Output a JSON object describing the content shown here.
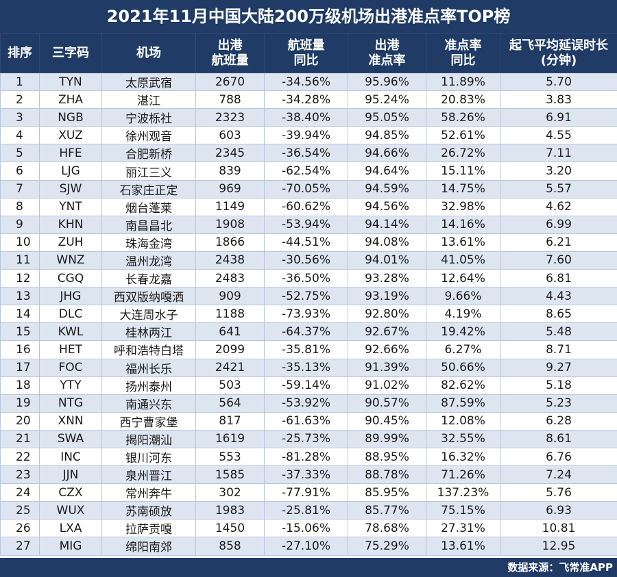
{
  "title": "2021年11月中国大陆200万级机场出港准点率TOP榜",
  "source": "数据来源：飞常准APP",
  "colors": {
    "header_bg": "#1f3b66",
    "row_alt": "#dde5f1",
    "row": "#ffffff"
  },
  "chart_data": {
    "type": "table",
    "title": "2021年11月中国大陆200万级机场出港准点率TOP榜",
    "columns": [
      "排序",
      "三字码",
      "机场",
      "出港\n航班量",
      "航班量\n同比",
      "出港\n准点率",
      "准点率\n同比",
      "起飞平均延误时长\n(分钟)"
    ],
    "rows": [
      [
        "1",
        "TYN",
        "太原武宿",
        "2670",
        "-34.56%",
        "95.96%",
        "11.89%",
        "5.70"
      ],
      [
        "2",
        "ZHA",
        "湛江",
        "788",
        "-34.28%",
        "95.24%",
        "20.83%",
        "3.83"
      ],
      [
        "3",
        "NGB",
        "宁波栎社",
        "2323",
        "-38.40%",
        "95.05%",
        "58.26%",
        "6.91"
      ],
      [
        "4",
        "XUZ",
        "徐州观音",
        "603",
        "-39.94%",
        "94.85%",
        "52.61%",
        "4.55"
      ],
      [
        "5",
        "HFE",
        "合肥新桥",
        "2345",
        "-36.54%",
        "94.66%",
        "26.72%",
        "7.11"
      ],
      [
        "6",
        "LJG",
        "丽江三义",
        "839",
        "-62.54%",
        "94.64%",
        "15.11%",
        "3.20"
      ],
      [
        "7",
        "SJW",
        "石家庄正定",
        "969",
        "-70.05%",
        "94.59%",
        "14.75%",
        "5.57"
      ],
      [
        "8",
        "YNT",
        "烟台蓬莱",
        "1149",
        "-60.62%",
        "94.56%",
        "32.98%",
        "4.62"
      ],
      [
        "9",
        "KHN",
        "南昌昌北",
        "1908",
        "-53.94%",
        "94.14%",
        "14.16%",
        "6.99"
      ],
      [
        "10",
        "ZUH",
        "珠海金湾",
        "1866",
        "-44.51%",
        "94.08%",
        "13.61%",
        "6.21"
      ],
      [
        "11",
        "WNZ",
        "温州龙湾",
        "2438",
        "-30.56%",
        "94.01%",
        "41.05%",
        "7.60"
      ],
      [
        "12",
        "CGQ",
        "长春龙嘉",
        "2483",
        "-36.50%",
        "93.28%",
        "12.64%",
        "6.81"
      ],
      [
        "13",
        "JHG",
        "西双版纳嘎洒",
        "909",
        "-52.75%",
        "93.19%",
        "9.66%",
        "4.43"
      ],
      [
        "14",
        "DLC",
        "大连周水子",
        "1188",
        "-73.93%",
        "92.80%",
        "4.19%",
        "8.65"
      ],
      [
        "15",
        "KWL",
        "桂林两江",
        "641",
        "-64.37%",
        "92.67%",
        "19.42%",
        "5.48"
      ],
      [
        "16",
        "HET",
        "呼和浩特白塔",
        "2099",
        "-35.81%",
        "92.66%",
        "6.27%",
        "8.71"
      ],
      [
        "17",
        "FOC",
        "福州长乐",
        "2421",
        "-35.13%",
        "91.39%",
        "50.66%",
        "9.27"
      ],
      [
        "18",
        "YTY",
        "扬州泰州",
        "503",
        "-59.14%",
        "91.02%",
        "82.62%",
        "5.18"
      ],
      [
        "19",
        "NTG",
        "南通兴东",
        "564",
        "-53.92%",
        "90.57%",
        "87.59%",
        "5.23"
      ],
      [
        "20",
        "XNN",
        "西宁曹家堡",
        "817",
        "-61.63%",
        "90.45%",
        "12.08%",
        "6.28"
      ],
      [
        "21",
        "SWA",
        "揭阳潮汕",
        "1619",
        "-25.73%",
        "89.99%",
        "32.55%",
        "8.61"
      ],
      [
        "22",
        "INC",
        "银川河东",
        "553",
        "-81.28%",
        "88.95%",
        "16.32%",
        "6.76"
      ],
      [
        "23",
        "JJN",
        "泉州晋江",
        "1585",
        "-37.33%",
        "88.78%",
        "71.26%",
        "7.24"
      ],
      [
        "24",
        "CZX",
        "常州奔牛",
        "302",
        "-77.91%",
        "85.95%",
        "137.23%",
        "5.76"
      ],
      [
        "25",
        "WUX",
        "苏南硕放",
        "1983",
        "-25.81%",
        "85.77%",
        "75.15%",
        "6.93"
      ],
      [
        "26",
        "LXA",
        "拉萨贡嘎",
        "1450",
        "-15.06%",
        "78.68%",
        "27.31%",
        "10.81"
      ],
      [
        "27",
        "MIG",
        "绵阳南郊",
        "858",
        "-27.10%",
        "75.29%",
        "13.61%",
        "12.95"
      ]
    ]
  }
}
